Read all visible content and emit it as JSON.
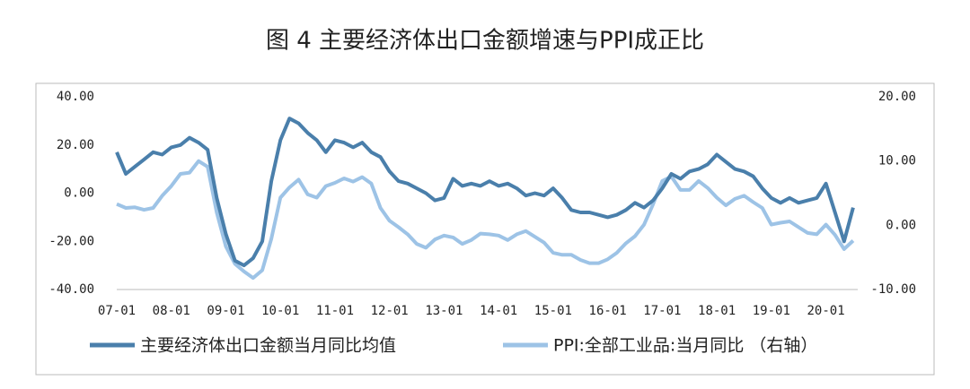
{
  "chart_data": {
    "type": "line",
    "title": "图 4 主要经济体出口金额增速与PPI成正比",
    "categories": [
      "07-01",
      null,
      null,
      null,
      null,
      null,
      "08-01",
      null,
      null,
      null,
      null,
      null,
      "09-01",
      null,
      null,
      null,
      null,
      null,
      "10-01",
      null,
      null,
      null,
      null,
      null,
      "11-01",
      null,
      null,
      null,
      null,
      null,
      "12-01",
      null,
      null,
      null,
      null,
      null,
      "13-01",
      null,
      null,
      null,
      null,
      null,
      "14-01",
      null,
      null,
      null,
      null,
      null,
      "15-01",
      null,
      null,
      null,
      null,
      null,
      "16-01",
      null,
      null,
      null,
      null,
      null,
      "17-01",
      null,
      null,
      null,
      null,
      null,
      "18-01",
      null,
      null,
      null,
      null,
      null,
      "19-01",
      null,
      null,
      null,
      null,
      null,
      "20-01",
      null,
      null,
      null
    ],
    "ylim": [
      -40,
      40
    ],
    "yticks": [
      {
        "value": -40,
        "label": "-40.00"
      },
      {
        "value": -20,
        "label": "-20.00"
      },
      {
        "value": 0,
        "label": "0.00"
      },
      {
        "value": 20,
        "label": "20.00"
      },
      {
        "value": 40,
        "label": "40.00"
      }
    ],
    "y2lim": [
      -10,
      20
    ],
    "y2ticks": [
      {
        "value": -10,
        "label": "-10.00"
      },
      {
        "value": 0,
        "label": "0.00"
      },
      {
        "value": 10,
        "label": "10.00"
      },
      {
        "value": 20,
        "label": "20.00"
      }
    ],
    "series": [
      {
        "name": "主要经济体出口金额当月同比均值",
        "color": "#4a7fab",
        "values": [
          17,
          8,
          11,
          14,
          17,
          16,
          19,
          20,
          23,
          21,
          18,
          -2,
          -17,
          -28,
          -30,
          -27,
          -20,
          5,
          22,
          31,
          29,
          25,
          22,
          17,
          22,
          21,
          19,
          21,
          17,
          15,
          9,
          5,
          4,
          2,
          0,
          -3,
          -2,
          6,
          3,
          4,
          3,
          5,
          3,
          4,
          2,
          -1,
          0,
          -1,
          2,
          -2,
          -7,
          -8,
          -8,
          -9,
          -10,
          -9,
          -7,
          -4,
          -6,
          -3,
          2,
          8,
          6,
          9,
          10,
          12,
          16,
          13,
          10,
          9,
          7,
          2,
          -2,
          -4,
          -2,
          -4,
          -3,
          -2,
          4,
          -8,
          -20,
          -6
        ]
      },
      {
        "name": "PPI:全部工业品:当月同比 （右轴）",
        "color": "#9dc3e6",
        "axis": "y2",
        "values": [
          3.3,
          2.7,
          2.8,
          2.4,
          2.7,
          4.6,
          6.1,
          8.0,
          8.2,
          10.0,
          9.1,
          2.0,
          -3.3,
          -6.0,
          -7.2,
          -8.2,
          -7.0,
          -2.1,
          4.3,
          5.9,
          7.1,
          4.8,
          4.3,
          6.1,
          6.6,
          7.3,
          6.8,
          7.5,
          6.5,
          2.7,
          0.7,
          -0.3,
          -1.4,
          -2.9,
          -3.5,
          -2.2,
          -1.6,
          -1.9,
          -2.9,
          -2.3,
          -1.3,
          -1.4,
          -1.6,
          -2.3,
          -1.4,
          -0.9,
          -1.8,
          -2.7,
          -4.3,
          -4.6,
          -4.6,
          -5.4,
          -5.9,
          -5.9,
          -5.3,
          -4.3,
          -2.8,
          -1.7,
          0.1,
          3.3,
          6.9,
          7.6,
          5.5,
          5.5,
          6.9,
          5.8,
          4.3,
          3.1,
          4.1,
          4.6,
          3.6,
          2.7,
          0.1,
          0.4,
          0.6,
          -0.3,
          -1.2,
          -1.4,
          0.1,
          -1.5,
          -3.7,
          -2.4
        ]
      }
    ]
  }
}
